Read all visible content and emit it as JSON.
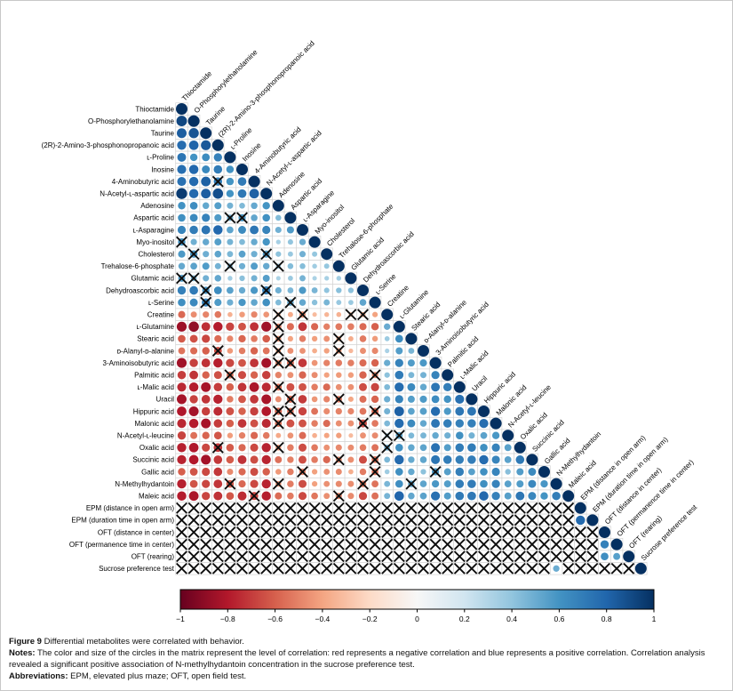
{
  "figure": {
    "title_lead": "Figure 9",
    "title_rest": " Differential metabolites were correlated with behavior.",
    "notes_lead": "Notes:",
    "notes_rest": " The color and size of the circles in the matrix represent the level of correlation: red represents a negative correlation and blue represents a positive correlation. Correlation analysis revealed a significant positive association of N-methylhydantoin concentration in the sucrose preference test.",
    "abbrev_lead": "Abbreviations:",
    "abbrev_rest": " EPM, elevated plus maze; OFT, open field test."
  },
  "colorbar": {
    "tick_labels": [
      "−1",
      "−0.8",
      "−0.6",
      "−0.4",
      "−0.2",
      "0",
      "0.2",
      "0.4",
      "0.6",
      "0.8",
      "1"
    ],
    "tick_values": [
      -1,
      -0.8,
      -0.6,
      -0.4,
      -0.2,
      0,
      0.2,
      0.4,
      0.6,
      0.8,
      1
    ],
    "border_color": "#000000"
  },
  "chart_data": {
    "type": "heatmap",
    "subtype": "correlation-matrix-lower-triangle",
    "title": "Differential metabolites correlated with behavior",
    "legend_position": "bottom-colorbar",
    "value_range": [
      -1,
      1
    ],
    "grid": true,
    "labels": [
      "Thioctamide",
      "O-Phosphorylethanolamine",
      "Taurine",
      "(2R)-2-Amino-3-phosphonopropanoic acid",
      "ʟ-Proline",
      "Inosine",
      "4-Aminobutyric acid",
      "N-Acetyl-ʟ-aspartic acid",
      "Adenosine",
      "Aspartic acid",
      "ʟ-Asparagine",
      "Myo-inositol",
      "Cholesterol",
      "Trehalose-6-phosphate",
      "Glutamic acid",
      "Dehydroascorbic acid",
      "ʟ-Serine",
      "Creatine",
      "ʟ-Glutamine",
      "Stearic acid",
      "ᴅ-Alanyl-ᴅ-alanine",
      "3-Aminoisobutyric acid",
      "Palmitic acid",
      "ʟ-Malic acid",
      "Uracil",
      "Hippuric acid",
      "Malonic acid",
      "N-Acetyl-ʟ-leucine",
      "Oxalic acid",
      "Succinic acid",
      "Gallic acid",
      "N-Methylhydantoin",
      "Maleic acid",
      "EPM (distance in open arm)",
      "EPM (duration time in open arm)",
      "OFT (distance in center)",
      "OFT (permanence time in center)",
      "OFT (rearing)",
      "Sucrose preference test"
    ],
    "groups": {
      "positive_block_indices": [
        0,
        16
      ],
      "negative_block_indices": [
        17,
        32
      ],
      "behavior_indices": [
        33,
        38
      ],
      "sign_rule": "within a metabolite block positive; across metabolite blocks negative; r = loading[i]*loading[j]"
    },
    "loadings": [
      0.95,
      0.92,
      0.9,
      0.9,
      0.72,
      0.8,
      0.85,
      0.92,
      0.62,
      0.68,
      0.8,
      0.6,
      0.62,
      0.6,
      0.55,
      0.72,
      0.7,
      0.55,
      0.88,
      0.68,
      0.65,
      0.85,
      0.75,
      0.88,
      0.82,
      0.85,
      0.86,
      0.65,
      0.8,
      0.85,
      0.72,
      0.78,
      0.85,
      0.15,
      0.15,
      0.15,
      0.15,
      0.15,
      0.15
    ],
    "diagonal_value": 1,
    "significant_behavior_cells": [
      {
        "row": 34,
        "col": 33,
        "r": 0.78
      },
      {
        "row": 36,
        "col": 35,
        "r": 0.68
      },
      {
        "row": 37,
        "col": 35,
        "r": 0.62
      },
      {
        "row": 37,
        "col": 36,
        "r": 0.55
      },
      {
        "row": 38,
        "col": 31,
        "r": 0.5
      }
    ],
    "highlight": "N-Methylhydantoin × Sucrose preference test ≈ +0.5 (significant, light blue)",
    "insig_value_behavior": 0.13,
    "insig_cells_metabolites": [
      [
        6,
        3
      ],
      [
        9,
        4
      ],
      [
        9,
        5
      ],
      [
        11,
        0
      ],
      [
        12,
        1
      ],
      [
        12,
        7
      ],
      [
        13,
        4
      ],
      [
        13,
        8
      ],
      [
        14,
        0
      ],
      [
        14,
        1
      ],
      [
        15,
        2
      ],
      [
        15,
        7
      ],
      [
        16,
        2
      ],
      [
        16,
        9
      ],
      [
        17,
        8
      ],
      [
        17,
        10
      ],
      [
        17,
        14
      ],
      [
        17,
        15
      ],
      [
        18,
        8
      ],
      [
        19,
        8
      ],
      [
        19,
        13
      ],
      [
        20,
        3
      ],
      [
        20,
        8
      ],
      [
        20,
        13
      ],
      [
        21,
        8
      ],
      [
        21,
        9
      ],
      [
        22,
        4
      ],
      [
        22,
        16
      ],
      [
        23,
        8
      ],
      [
        24,
        9
      ],
      [
        24,
        13
      ],
      [
        25,
        8
      ],
      [
        25,
        9
      ],
      [
        25,
        16
      ],
      [
        26,
        8
      ],
      [
        26,
        15
      ],
      [
        27,
        17
      ],
      [
        27,
        18
      ],
      [
        28,
        3
      ],
      [
        28,
        8
      ],
      [
        28,
        17
      ],
      [
        29,
        13
      ],
      [
        29,
        16
      ],
      [
        30,
        10
      ],
      [
        30,
        16
      ],
      [
        30,
        21
      ],
      [
        31,
        4
      ],
      [
        31,
        8
      ],
      [
        31,
        15
      ],
      [
        31,
        19
      ],
      [
        32,
        6
      ],
      [
        32,
        13
      ]
    ],
    "colormap_rdbu": [
      "#67001f",
      "#b2182b",
      "#d6604d",
      "#f4a582",
      "#fddbc7",
      "#f7f7f7",
      "#d1e5f0",
      "#92c5de",
      "#4393c3",
      "#2166ac",
      "#053061"
    ],
    "cross_color": "#0d0d0d",
    "gridline_color": "#d4d4d4"
  }
}
